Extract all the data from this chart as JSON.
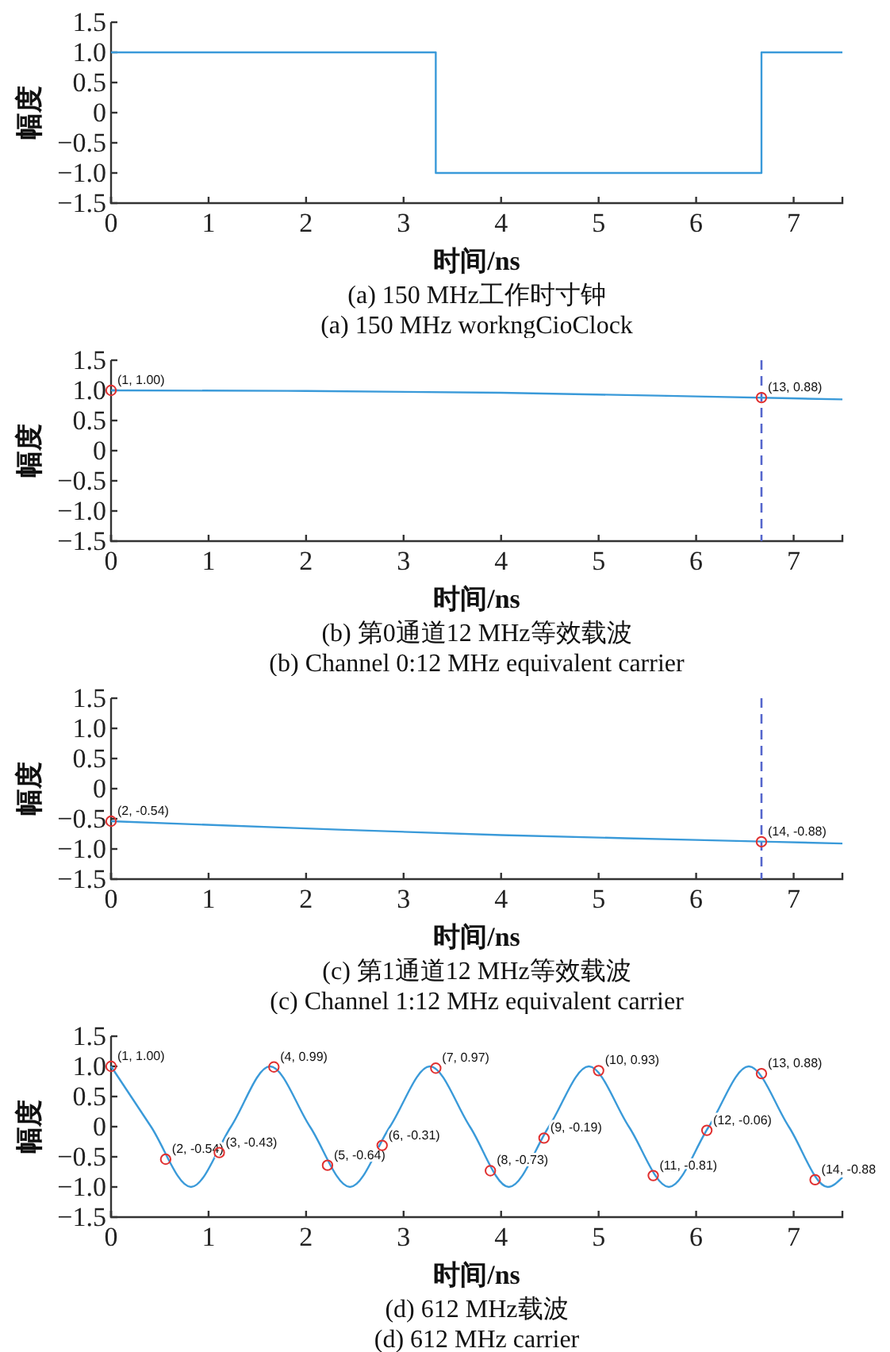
{
  "chart_data": [
    {
      "type": "step",
      "title": "(a) 150 MHz工作时寸钟",
      "subtitle": "(a) 150 MHz workngCioClock",
      "xlabel": "时间/ns",
      "ylabel": "幅度",
      "xlim": [
        0,
        7.5
      ],
      "xticks": [
        0,
        1,
        2,
        3,
        4,
        5,
        6,
        7
      ],
      "ylim": [
        -1.5,
        1.5
      ],
      "yticks": [
        {
          "value": -1.5,
          "label": "−1.5"
        },
        {
          "value": -1,
          "label": "−1.0"
        },
        {
          "value": -0.5,
          "label": "−0.5"
        },
        {
          "value": 0,
          "label": "0"
        },
        {
          "value": 0.5,
          "label": "0.5"
        },
        {
          "value": 1,
          "label": "1.0"
        },
        {
          "value": 1.5,
          "label": "1.5"
        }
      ],
      "series": [
        {
          "color": "#3a9ad9",
          "x": [
            0,
            3.33,
            6.67,
            7.5
          ],
          "values": [
            1,
            -1,
            1,
            1
          ]
        }
      ]
    },
    {
      "type": "line",
      "title": "(b) 第0通道12 MHz等效载波",
      "subtitle": "(b) Channel 0:12 MHz equivalent carrier",
      "xlabel": "时间/ns",
      "ylabel": "幅度",
      "xlim": [
        0,
        7.5
      ],
      "xticks": [
        0,
        1,
        2,
        3,
        4,
        5,
        6,
        7
      ],
      "ylim": [
        -1.5,
        1.5
      ],
      "yticks": [
        {
          "value": -1.5,
          "label": "−1.5"
        },
        {
          "value": -1,
          "label": "−1.0"
        },
        {
          "value": -0.5,
          "label": "−0.5"
        },
        {
          "value": 0,
          "label": "0"
        },
        {
          "value": 0.5,
          "label": "0.5"
        },
        {
          "value": 1,
          "label": "1.0"
        },
        {
          "value": 1.5,
          "label": "1.5"
        }
      ],
      "ref_lines": [
        {
          "axis": "x",
          "value": 6.67,
          "color": "#5566cc",
          "line_style": "dashed"
        }
      ],
      "series": [
        {
          "color": "#3a9ad9",
          "x": [
            0,
            2,
            4,
            6,
            7.5
          ],
          "values": [
            1.0,
            0.99,
            0.96,
            0.9,
            0.85
          ]
        },
        {
          "type": "scatter",
          "marker": "circle",
          "color": "#e03030",
          "x": [
            0,
            6.67
          ],
          "values": [
            1.0,
            0.88
          ],
          "value_labels": [
            "(1, 1.00)",
            "(13, 0.88)"
          ]
        }
      ]
    },
    {
      "type": "line",
      "title": "(c) 第1通道12 MHz等效载波",
      "subtitle": "(c) Channel 1:12 MHz equivalent carrier",
      "xlabel": "时间/ns",
      "ylabel": "幅度",
      "xlim": [
        0,
        7.5
      ],
      "xticks": [
        0,
        1,
        2,
        3,
        4,
        5,
        6,
        7
      ],
      "ylim": [
        -1.5,
        1.5
      ],
      "yticks": [
        {
          "value": -1.5,
          "label": "−1.5"
        },
        {
          "value": -1,
          "label": "−1.0"
        },
        {
          "value": -0.5,
          "label": "−0.5"
        },
        {
          "value": 0,
          "label": "0"
        },
        {
          "value": 0.5,
          "label": "0.5"
        },
        {
          "value": 1,
          "label": "1.0"
        },
        {
          "value": 1.5,
          "label": "1.5"
        }
      ],
      "ref_lines": [
        {
          "axis": "x",
          "value": 6.67,
          "color": "#5566cc",
          "line_style": "dashed"
        }
      ],
      "series": [
        {
          "color": "#3a9ad9",
          "x": [
            0,
            2,
            4,
            6,
            7.5
          ],
          "values": [
            -0.54,
            -0.66,
            -0.77,
            -0.85,
            -0.91
          ]
        },
        {
          "type": "scatter",
          "marker": "circle",
          "color": "#e03030",
          "x": [
            0,
            6.67
          ],
          "values": [
            -0.54,
            -0.88
          ],
          "value_labels": [
            "(2, -0.54)",
            "(14, -0.88)"
          ]
        }
      ]
    },
    {
      "type": "line",
      "title": "(d) 612 MHz载波",
      "subtitle": "(d) 612 MHz carrier",
      "xlabel": "时间/ns",
      "ylabel": "幅度",
      "xlim": [
        0,
        7.5
      ],
      "xticks": [
        0,
        1,
        2,
        3,
        4,
        5,
        6,
        7
      ],
      "ylim": [
        -1.5,
        1.5
      ],
      "yticks": [
        {
          "value": -1.5,
          "label": "−1.5"
        },
        {
          "value": -1,
          "label": "−1.0"
        },
        {
          "value": -0.5,
          "label": "−0.5"
        },
        {
          "value": 0,
          "label": "0"
        },
        {
          "value": 0.5,
          "label": "0.5"
        },
        {
          "value": 1,
          "label": "1.0"
        },
        {
          "value": 1.5,
          "label": "1.5"
        }
      ],
      "series": [
        {
          "color": "#3a9ad9",
          "x": [
            0,
            0.41,
            0.82,
            1.23,
            1.63,
            2.04,
            2.45,
            2.86,
            3.27,
            3.68,
            4.08,
            4.49,
            4.9,
            5.31,
            5.72,
            6.13,
            6.54,
            6.95,
            7.35,
            7.5
          ],
          "values": [
            1,
            0,
            -1,
            0,
            1,
            0,
            -1,
            0,
            1,
            0,
            -1,
            0,
            1,
            0,
            -1,
            0,
            1,
            0,
            -1,
            -0.84
          ]
        },
        {
          "type": "scatter",
          "marker": "circle",
          "color": "#e03030",
          "x": [
            0,
            0.56,
            1.11,
            1.67,
            2.22,
            2.78,
            3.33,
            3.89,
            4.44,
            5.0,
            5.56,
            6.11,
            6.67,
            7.22
          ],
          "values": [
            1.0,
            -0.54,
            -0.43,
            0.99,
            -0.64,
            -0.31,
            0.97,
            -0.73,
            -0.19,
            0.93,
            -0.81,
            -0.06,
            0.88,
            -0.88
          ],
          "value_labels": [
            "(1, 1.00)",
            "(2, -0.54)",
            "(3, -0.43)",
            "(4, 0.99)",
            "(5, -0.64)",
            "(6, -0.31)",
            "(7, 0.97)",
            "(8, -0.73)",
            "(9, -0.19)",
            "(10, 0.93)",
            "(11, -0.81)",
            "(12, -0.06)",
            "(13, 0.88)",
            "(14, -0.88"
          ]
        }
      ]
    }
  ]
}
